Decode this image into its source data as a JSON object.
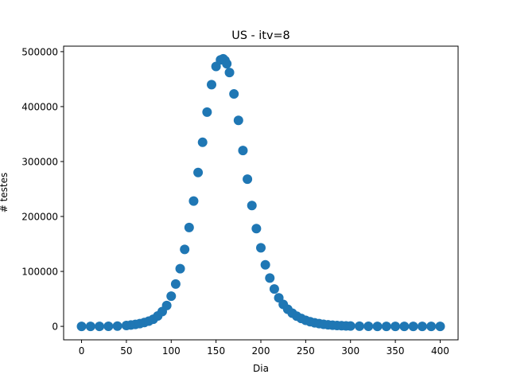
{
  "chart_data": {
    "type": "scatter",
    "title": "US - itv=8",
    "xlabel": "Dia",
    "ylabel": "# testes",
    "xlim": [
      -20,
      420
    ],
    "ylim": [
      -24500,
      510000
    ],
    "x_ticks": [
      0,
      50,
      100,
      150,
      200,
      250,
      300,
      350,
      400
    ],
    "y_ticks": [
      0,
      100000,
      200000,
      300000,
      400000,
      500000
    ],
    "x_tick_labels": [
      "0",
      "50",
      "100",
      "150",
      "200",
      "250",
      "300",
      "350",
      "400"
    ],
    "y_tick_labels": [
      "0",
      "100000",
      "200000",
      "300000",
      "400000",
      "500000"
    ],
    "grid": false,
    "series": [
      {
        "color": "#1f77b4",
        "marker": "circle",
        "x": [
          0,
          10,
          20,
          30,
          40,
          50,
          55,
          60,
          65,
          70,
          75,
          80,
          85,
          90,
          95,
          100,
          105,
          110,
          115,
          120,
          125,
          130,
          135,
          140,
          145,
          150,
          155,
          158,
          160,
          162,
          165,
          170,
          175,
          180,
          185,
          190,
          195,
          200,
          205,
          210,
          215,
          220,
          225,
          230,
          235,
          240,
          245,
          250,
          255,
          260,
          265,
          270,
          275,
          280,
          285,
          290,
          295,
          300,
          310,
          320,
          330,
          340,
          350,
          360,
          370,
          380,
          390,
          400
        ],
        "y": [
          0,
          0,
          0,
          200,
          500,
          1500,
          2500,
          3500,
          5000,
          7000,
          9500,
          13000,
          19000,
          27000,
          38000,
          55000,
          77000,
          105000,
          140000,
          180000,
          228000,
          280000,
          335000,
          390000,
          440000,
          473000,
          485000,
          487000,
          484000,
          478000,
          462000,
          423000,
          375000,
          320000,
          268000,
          220000,
          178000,
          143000,
          112000,
          88000,
          68000,
          52000,
          40000,
          31000,
          24000,
          18500,
          14500,
          11000,
          8500,
          6500,
          5000,
          3800,
          2900,
          2200,
          1600,
          1200,
          900,
          600,
          300,
          100,
          0,
          0,
          0,
          0,
          0,
          0,
          0,
          0
        ]
      }
    ]
  }
}
